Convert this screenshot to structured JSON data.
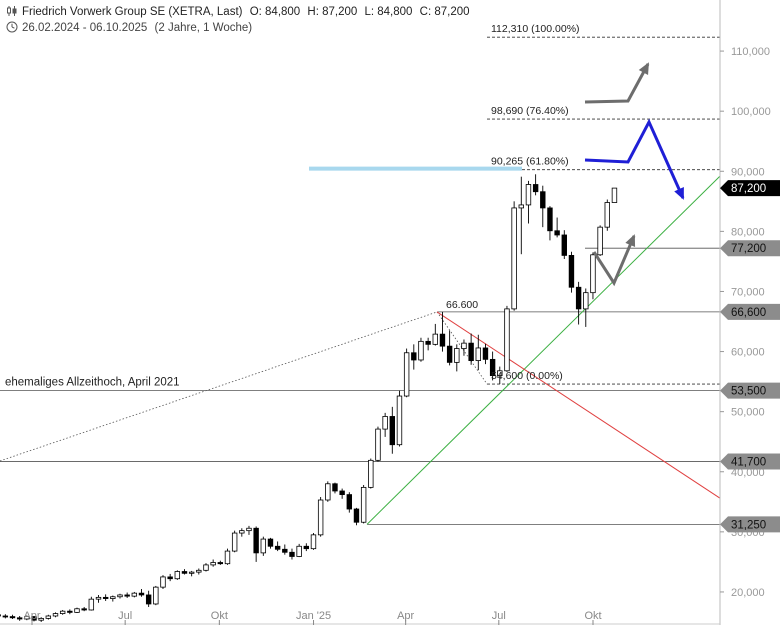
{
  "header": {
    "title": "Friedrich Vorwerk Group SE (XETRA, Last)",
    "open": "O: 84,800",
    "high": "H: 87,200",
    "low": "L: 84,800",
    "close": "C: 87,200",
    "range": "26.02.2024 - 06.10.2025",
    "period": "(2 Jahre, 1 Woche)"
  },
  "chart_data": {
    "type": "candlestick",
    "title": "Friedrich Vorwerk Group SE (XETRA, Last)",
    "ylim": [
      14.5,
      118.5
    ],
    "y_ticks": [
      20,
      30,
      40,
      50,
      60,
      70,
      80,
      90,
      100,
      110
    ],
    "y_tick_labels": [
      "20,000",
      "30,000",
      "40,000",
      "50,000",
      "60,000",
      "70,000",
      "80,000",
      "90,000",
      "100,000",
      "110,000"
    ],
    "x_tick_labels": [
      "Apr",
      "Jul",
      "Okt",
      "Jan '25",
      "Apr",
      "Jul",
      "Okt"
    ],
    "x_tick_dates": [
      "2024-04-01",
      "2024-07-01",
      "2024-10-01",
      "2025-01-01",
      "2025-04-01",
      "2025-07-01",
      "2025-10-01"
    ],
    "candle_dates_start": "2024-02-26",
    "candle_interval_days": 7,
    "candles": [
      [
        16.2,
        16.5,
        15.8,
        16.0
      ],
      [
        16.0,
        16.3,
        15.6,
        15.9
      ],
      [
        15.9,
        16.2,
        15.5,
        15.7
      ],
      [
        15.7,
        16.0,
        15.2,
        15.5
      ],
      [
        15.5,
        16.1,
        15.3,
        15.9
      ],
      [
        15.9,
        16.0,
        15.1,
        15.3
      ],
      [
        15.3,
        15.8,
        15.0,
        15.6
      ],
      [
        15.6,
        16.2,
        15.4,
        16.0
      ],
      [
        16.0,
        16.6,
        15.8,
        16.4
      ],
      [
        16.4,
        17.0,
        16.2,
        16.8
      ],
      [
        16.8,
        17.1,
        16.3,
        16.6
      ],
      [
        16.6,
        17.4,
        16.5,
        17.2
      ],
      [
        17.2,
        17.5,
        16.8,
        17.0
      ],
      [
        17.0,
        19.2,
        16.9,
        18.8
      ],
      [
        18.8,
        19.5,
        18.2,
        19.1
      ],
      [
        19.1,
        19.6,
        18.5,
        18.9
      ],
      [
        18.9,
        19.4,
        18.4,
        19.2
      ],
      [
        19.2,
        19.7,
        18.9,
        19.5
      ],
      [
        19.5,
        19.9,
        19.0,
        19.3
      ],
      [
        19.3,
        20.0,
        19.1,
        19.8
      ],
      [
        19.8,
        20.5,
        19.2,
        19.5
      ],
      [
        19.5,
        20.2,
        17.5,
        18.0
      ],
      [
        18.0,
        21.0,
        17.8,
        20.8
      ],
      [
        20.8,
        22.8,
        20.5,
        22.5
      ],
      [
        22.5,
        23.0,
        21.8,
        22.2
      ],
      [
        22.2,
        23.6,
        22.0,
        23.4
      ],
      [
        23.4,
        23.8,
        22.9,
        23.1
      ],
      [
        23.1,
        23.5,
        22.6,
        23.3
      ],
      [
        23.3,
        23.9,
        22.9,
        23.6
      ],
      [
        23.6,
        24.8,
        23.4,
        24.5
      ],
      [
        24.5,
        25.4,
        24.2,
        24.9
      ],
      [
        24.9,
        25.2,
        24.5,
        24.7
      ],
      [
        24.7,
        27.2,
        24.5,
        26.8
      ],
      [
        26.8,
        30.2,
        26.6,
        29.8
      ],
      [
        29.8,
        30.6,
        29.2,
        30.2
      ],
      [
        30.2,
        31.0,
        29.5,
        30.6
      ],
      [
        30.6,
        30.9,
        25.0,
        26.5
      ],
      [
        26.5,
        29.2,
        26.0,
        28.8
      ],
      [
        28.8,
        29.0,
        27.2,
        27.6
      ],
      [
        27.6,
        28.4,
        26.8,
        27.1
      ],
      [
        27.1,
        27.9,
        26.2,
        26.6
      ],
      [
        26.6,
        27.2,
        25.4,
        25.9
      ],
      [
        25.9,
        28.0,
        25.8,
        27.6
      ],
      [
        27.6,
        28.1,
        26.8,
        27.2
      ],
      [
        27.2,
        29.8,
        27.0,
        29.5
      ],
      [
        29.5,
        35.8,
        29.2,
        35.3
      ],
      [
        35.3,
        38.4,
        35.0,
        38.0
      ],
      [
        38.0,
        38.2,
        36.4,
        36.8
      ],
      [
        36.8,
        37.2,
        35.5,
        36.2
      ],
      [
        36.2,
        36.6,
        33.2,
        33.8
      ],
      [
        33.8,
        34.0,
        31.1,
        31.6
      ],
      [
        31.6,
        37.8,
        31.4,
        37.4
      ],
      [
        37.4,
        42.2,
        37.2,
        41.9
      ],
      [
        41.9,
        47.5,
        41.7,
        47.1
      ],
      [
        47.1,
        49.8,
        45.8,
        49.2
      ],
      [
        49.2,
        50.8,
        43.0,
        44.5
      ],
      [
        44.5,
        53.5,
        44.2,
        52.6
      ],
      [
        52.6,
        60.5,
        52.4,
        59.8
      ],
      [
        59.8,
        61.2,
        57.0,
        58.6
      ],
      [
        58.6,
        62.3,
        58.3,
        61.7
      ],
      [
        61.7,
        62.3,
        60.2,
        61.2
      ],
      [
        61.2,
        64.6,
        61.0,
        62.9
      ],
      [
        62.9,
        66.6,
        60.0,
        60.9
      ],
      [
        60.9,
        63.5,
        57.7,
        58.2
      ],
      [
        58.2,
        61.2,
        56.7,
        60.5
      ],
      [
        60.5,
        62.0,
        59.3,
        61.4
      ],
      [
        61.4,
        63.0,
        57.8,
        58.5
      ],
      [
        58.5,
        62.8,
        56.9,
        60.6
      ],
      [
        60.6,
        61.3,
        57.9,
        58.7
      ],
      [
        58.7,
        60.0,
        55.2,
        56.0
      ],
      [
        56.0,
        57.5,
        54.6,
        56.8
      ],
      [
        56.8,
        67.6,
        56.6,
        67.1
      ],
      [
        67.1,
        85.0,
        66.8,
        83.9
      ],
      [
        83.9,
        89.1,
        76.2,
        84.4
      ],
      [
        84.4,
        88.4,
        81.3,
        87.8
      ],
      [
        87.8,
        89.5,
        86.0,
        86.6
      ],
      [
        86.6,
        87.6,
        80.7,
        83.9
      ],
      [
        83.9,
        84.2,
        78.5,
        80.1
      ],
      [
        80.1,
        82.3,
        79.0,
        79.4
      ],
      [
        79.4,
        80.2,
        75.4,
        76.0
      ],
      [
        76.0,
        76.6,
        69.8,
        70.7
      ],
      [
        70.7,
        71.6,
        64.5,
        67.1
      ],
      [
        67.1,
        70.5,
        64.1,
        69.8
      ],
      [
        69.8,
        76.5,
        68.7,
        76.1
      ],
      [
        76.1,
        81.0,
        75.9,
        80.7
      ],
      [
        80.7,
        85.3,
        80.1,
        84.8
      ],
      [
        84.8,
        87.2,
        84.8,
        87.2
      ]
    ],
    "price_labels": [
      "87,200",
      "77,200",
      "66,600",
      "53,500",
      "41,700",
      "31,250"
    ],
    "price_levels": [
      87.2,
      77.2,
      66.6,
      53.5,
      41.7,
      31.25
    ],
    "fib_labels": [
      "112,310 (100.00%)",
      "98,690 (76.40%)",
      "90,265 (61.80%)",
      "54,600 (0.00%)"
    ],
    "fib_levels": [
      112.31,
      98.69,
      90.265,
      54.6
    ],
    "annotations": {
      "peak": "66.600",
      "ath": "ehemaliges Allzeithoch, April 2021"
    },
    "colors": {
      "up_body": "#ffffff",
      "down_body": "#000000",
      "candle_stroke": "#000000",
      "last_price_bg": "#000000",
      "label_bg": "#8c8c8c",
      "support_line": "#444444",
      "uptrend": "#3cb043",
      "downtrend": "#e04040",
      "resistance_band": "#a8d8ee",
      "blue_arrow": "#1f1fd6",
      "gray_arrow": "#6d6d6d"
    },
    "grid": false,
    "legend": "none"
  }
}
